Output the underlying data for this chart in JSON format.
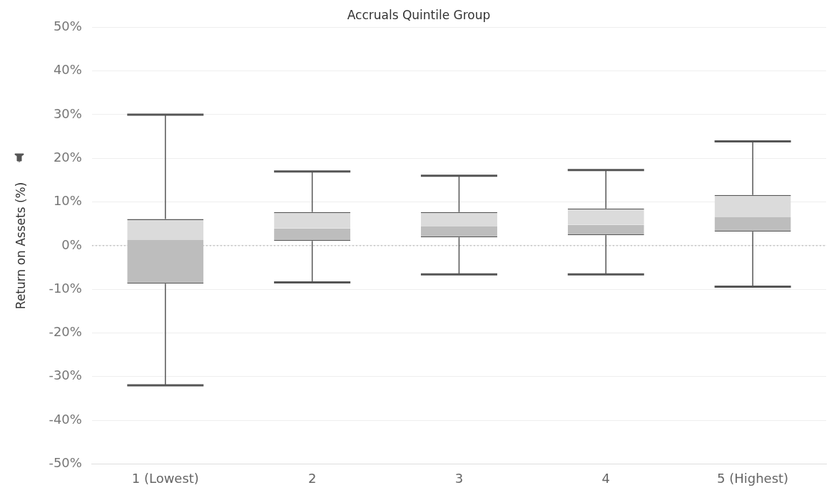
{
  "chart_data": {
    "type": "box",
    "title": "Accruals Quintile Group",
    "ylabel": "Return on Assets (%)",
    "categories": [
      "1 (Lowest)",
      "2",
      "3",
      "4",
      "5 (Highest)"
    ],
    "boxes": [
      {
        "low": -32,
        "q1": -8.7,
        "median": 1.3,
        "q3": 6.1,
        "high": 30
      },
      {
        "low": -8.4,
        "q1": 1.1,
        "median": 4.0,
        "q3": 7.7,
        "high": 17
      },
      {
        "low": -6.6,
        "q1": 1.9,
        "median": 4.4,
        "q3": 7.7,
        "high": 16
      },
      {
        "low": -6.6,
        "q1": 2.4,
        "median": 4.8,
        "q3": 8.5,
        "high": 17.3
      },
      {
        "low": -9.4,
        "q1": 3.2,
        "median": 6.5,
        "q3": 11.6,
        "high": 23.9
      }
    ],
    "color": "#bdbdbd",
    "ylim": [
      -50,
      50
    ],
    "yticks": [
      {
        "value": -50,
        "label": "-50%"
      },
      {
        "value": -40,
        "label": "-40%"
      },
      {
        "value": -30,
        "label": "-30%"
      },
      {
        "value": -20,
        "label": "-20%"
      },
      {
        "value": -10,
        "label": "-10%"
      },
      {
        "value": 0,
        "label": "0%"
      },
      {
        "value": 10,
        "label": "10%"
      },
      {
        "value": 20,
        "label": "20%"
      },
      {
        "value": 30,
        "label": "30%"
      },
      {
        "value": 40,
        "label": "40%"
      },
      {
        "value": 50,
        "label": "50%"
      }
    ],
    "grid": "y",
    "legend": false,
    "ref_lines": [
      {
        "axis": "y",
        "value": 0,
        "color": "#aaaaaa",
        "line_style": "dotted"
      }
    ]
  }
}
